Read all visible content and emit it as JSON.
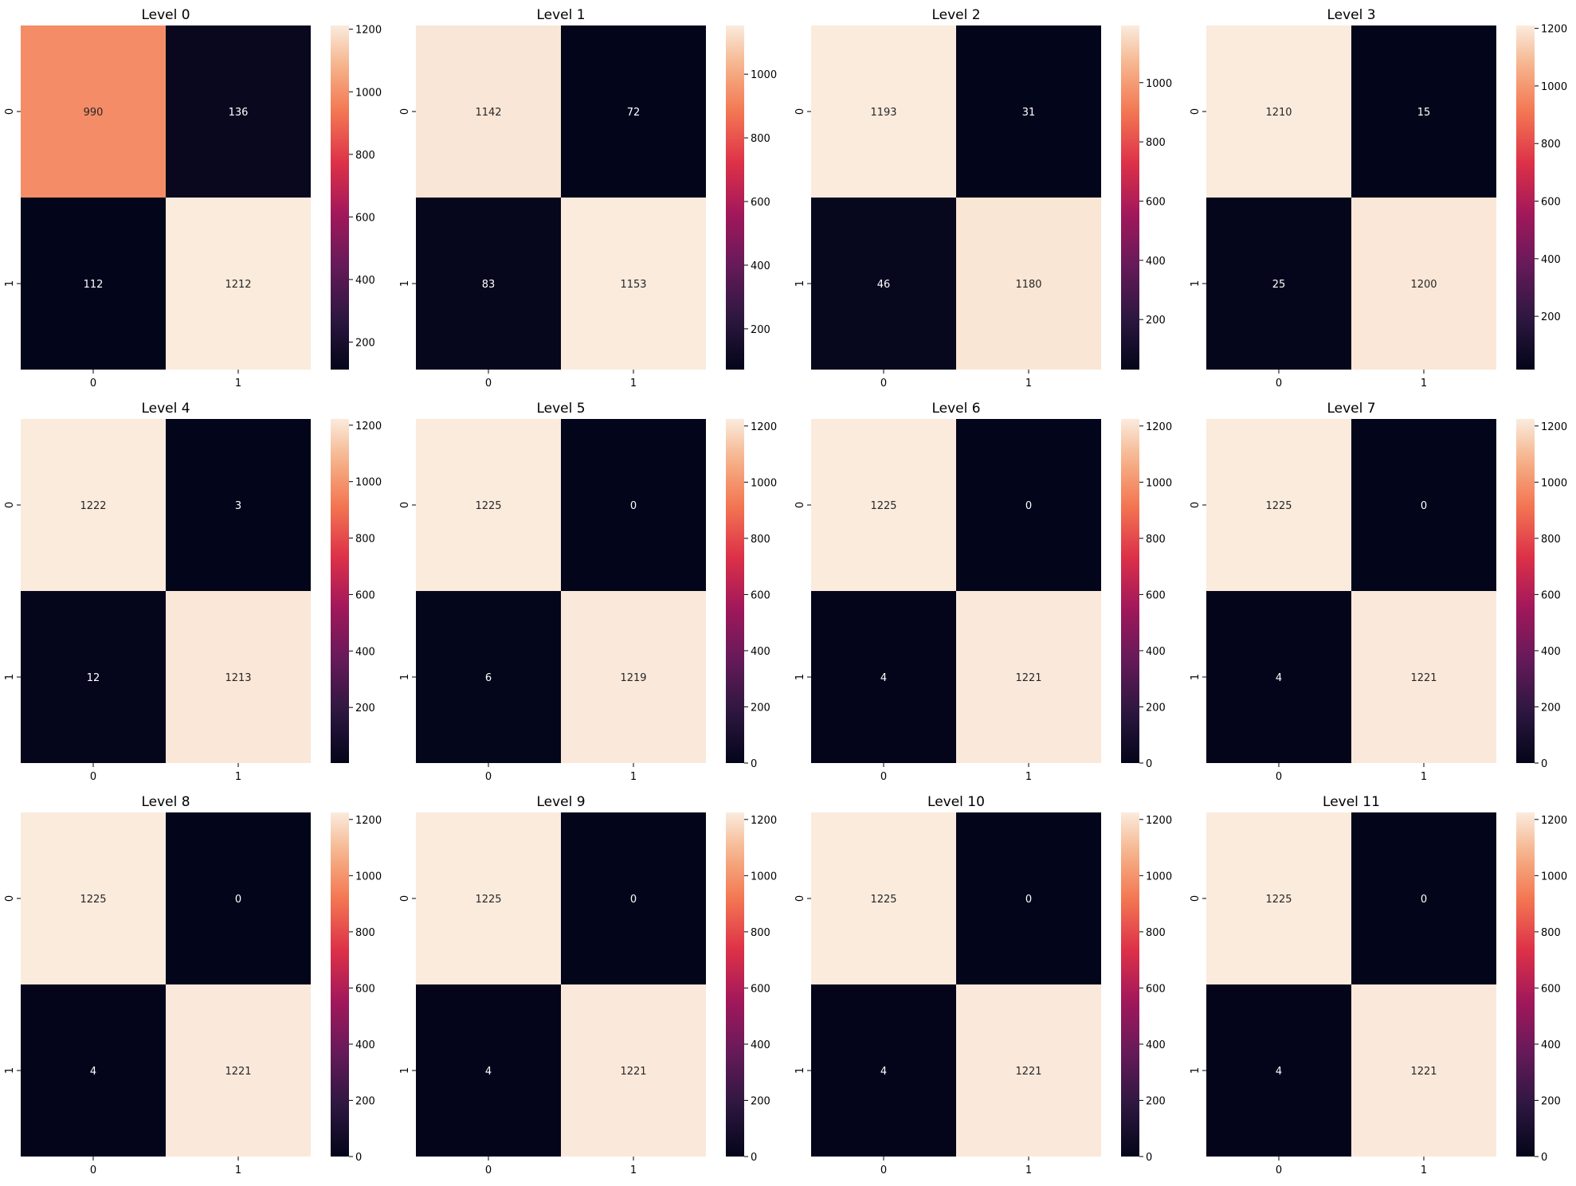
{
  "chart_data": {
    "type": "heatmap",
    "colormap": "rocket",
    "grid": false,
    "row_labels": [
      "0",
      "1"
    ],
    "col_labels": [
      "0",
      "1"
    ],
    "colorbar_ticks": [
      "0",
      "200",
      "400",
      "600",
      "800",
      "1000",
      "1200"
    ],
    "panels": [
      {
        "title": "Level 0",
        "matrix": [
          [
            990,
            136
          ],
          [
            112,
            1212
          ]
        ],
        "vmin": 112,
        "vmax": 1212
      },
      {
        "title": "Level 1",
        "matrix": [
          [
            1142,
            72
          ],
          [
            83,
            1153
          ]
        ],
        "vmin": 72,
        "vmax": 1153
      },
      {
        "title": "Level 2",
        "matrix": [
          [
            1193,
            31
          ],
          [
            46,
            1180
          ]
        ],
        "vmin": 31,
        "vmax": 1193
      },
      {
        "title": "Level 3",
        "matrix": [
          [
            1210,
            15
          ],
          [
            25,
            1200
          ]
        ],
        "vmin": 15,
        "vmax": 1210
      },
      {
        "title": "Level 4",
        "matrix": [
          [
            1222,
            3
          ],
          [
            12,
            1213
          ]
        ],
        "vmin": 3,
        "vmax": 1222
      },
      {
        "title": "Level 5",
        "matrix": [
          [
            1225,
            0
          ],
          [
            6,
            1219
          ]
        ],
        "vmin": 0,
        "vmax": 1225
      },
      {
        "title": "Level 6",
        "matrix": [
          [
            1225,
            0
          ],
          [
            4,
            1221
          ]
        ],
        "vmin": 0,
        "vmax": 1225
      },
      {
        "title": "Level 7",
        "matrix": [
          [
            1225,
            0
          ],
          [
            4,
            1221
          ]
        ],
        "vmin": 0,
        "vmax": 1225
      },
      {
        "title": "Level 8",
        "matrix": [
          [
            1225,
            0
          ],
          [
            4,
            1221
          ]
        ],
        "vmin": 0,
        "vmax": 1225
      },
      {
        "title": "Level 9",
        "matrix": [
          [
            1225,
            0
          ],
          [
            4,
            1221
          ]
        ],
        "vmin": 0,
        "vmax": 1225
      },
      {
        "title": "Level 10",
        "matrix": [
          [
            1225,
            0
          ],
          [
            4,
            1221
          ]
        ],
        "vmin": 0,
        "vmax": 1225
      },
      {
        "title": "Level 11",
        "matrix": [
          [
            1225,
            0
          ],
          [
            4,
            1221
          ]
        ],
        "vmin": 0,
        "vmax": 1225
      }
    ]
  }
}
